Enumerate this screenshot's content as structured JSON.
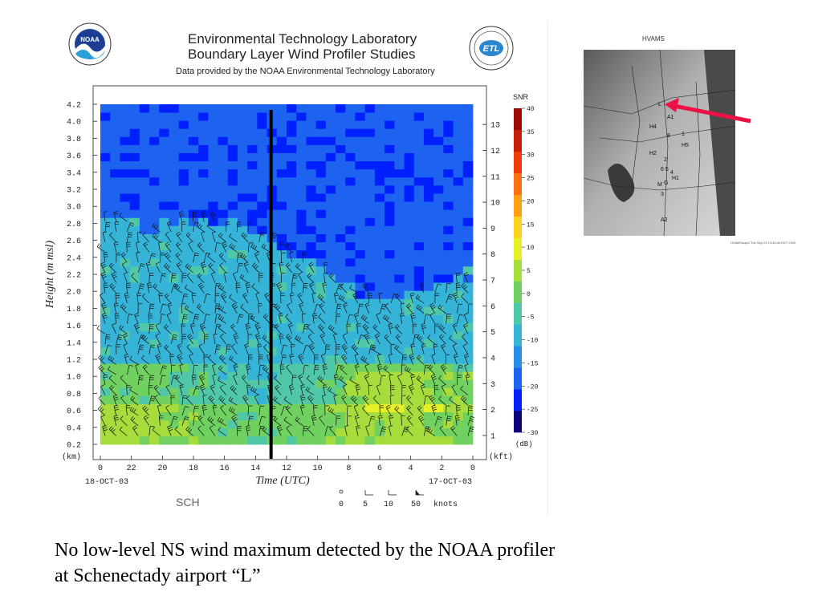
{
  "header": {
    "title": "Environmental Technology Laboratory",
    "subtitle": "Boundary Layer Wind Profiler Studies",
    "credit": "Data provided by the NOAA Environmental Technology Laboratory",
    "logo_left_text": "NOAA",
    "logo_right_text": "ETL"
  },
  "chart_data": {
    "type": "heatmap",
    "xlabel": "Time (UTC)",
    "ylabel": "Height (m msl)",
    "y_unit_left": "(km)",
    "y_unit_right": "(kft)",
    "x_tick_labels": [
      "0",
      "22",
      "20",
      "18",
      "16",
      "14",
      "12",
      "10",
      "8",
      "6",
      "4",
      "2",
      "0"
    ],
    "x_hours": [
      24,
      22,
      20,
      18,
      16,
      14,
      12,
      10,
      8,
      6,
      4,
      2,
      0
    ],
    "x_reversed": true,
    "x_start_label": "18-OCT-03",
    "x_end_label": "17-OCT-03",
    "y_ticks_km": [
      "0.2",
      "0.4",
      "0.6",
      "0.8",
      "1.0",
      "1.2",
      "1.4",
      "1.6",
      "1.8",
      "2.0",
      "2.2",
      "2.4",
      "2.6",
      "2.8",
      "3.0",
      "3.2",
      "3.4",
      "3.6",
      "3.8",
      "4.0",
      "4.2"
    ],
    "ylim_km": [
      0.2,
      4.2
    ],
    "y_ticks_kft": [
      "1",
      "2",
      "3",
      "4",
      "5",
      "6",
      "7",
      "8",
      "9",
      "10",
      "11",
      "12",
      "13"
    ],
    "highlight_time_utc": 13,
    "station_label": "SCH",
    "colorbar": {
      "title": "SNR",
      "unit": "(dB)",
      "ticks": [
        "40",
        "35",
        "30",
        "25",
        "20",
        "15",
        "10",
        "5",
        "0",
        "-5",
        "-10",
        "-15",
        "-20",
        "-25",
        "-30"
      ],
      "range": [
        -30,
        40
      ],
      "colors": [
        "#0a0078",
        "#0020ff",
        "#1e62f0",
        "#2a8ee8",
        "#35b4d8",
        "#50c8a8",
        "#70d060",
        "#a6dc3c",
        "#e6f028",
        "#ffd21e",
        "#ffa014",
        "#ff6e10",
        "#f03c0a",
        "#c81e08",
        "#a00a05"
      ]
    },
    "wind_legend": {
      "values": [
        "0",
        "5",
        "10",
        "50"
      ],
      "unit": "knots"
    }
  },
  "map": {
    "title": "HVAMS",
    "stamp": "HVAMSmap2   Tue Sep 23 13:44:40 EDT 2003",
    "site_labels": [
      "L",
      "A1",
      "H4",
      "8",
      "1",
      "H5",
      "H2",
      "2",
      "6 5",
      "4",
      "H1",
      "M",
      "G",
      "3",
      "A2"
    ],
    "arrow_color": "#ee1144"
  },
  "caption": {
    "line1": "No low-level NS wind maximum detected by the NOAA profiler",
    "line2": "at Schenectady airport “L”"
  }
}
